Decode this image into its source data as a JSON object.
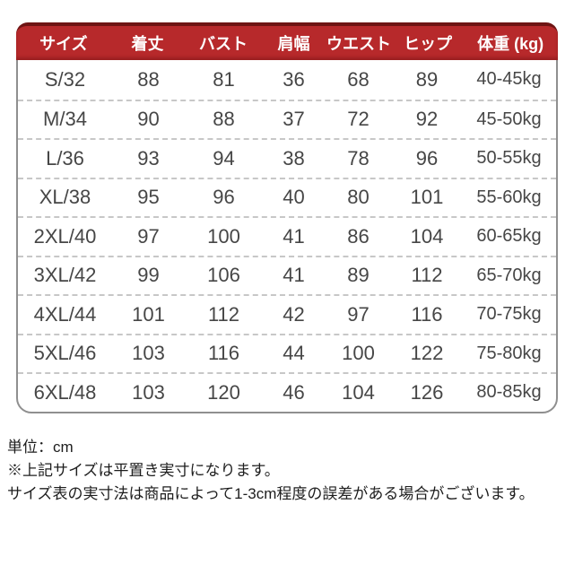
{
  "size_chart": {
    "header_labels": [
      "サイズ",
      "着丈",
      "バスト",
      "肩幅",
      "ウエスト",
      "ヒップ",
      "体重 (kg)"
    ],
    "rows": [
      {
        "size": "S/32",
        "length": "88",
        "bust": "81",
        "shoulder": "36",
        "waist": "68",
        "hip": "89",
        "weight": "40-45kg"
      },
      {
        "size": "M/34",
        "length": "90",
        "bust": "88",
        "shoulder": "37",
        "waist": "72",
        "hip": "92",
        "weight": "45-50kg"
      },
      {
        "size": "L/36",
        "length": "93",
        "bust": "94",
        "shoulder": "38",
        "waist": "78",
        "hip": "96",
        "weight": "50-55kg"
      },
      {
        "size": "XL/38",
        "length": "95",
        "bust": "96",
        "shoulder": "40",
        "waist": "80",
        "hip": "101",
        "weight": "55-60kg"
      },
      {
        "size": "2XL/40",
        "length": "97",
        "bust": "100",
        "shoulder": "41",
        "waist": "86",
        "hip": "104",
        "weight": "60-65kg"
      },
      {
        "size": "3XL/42",
        "length": "99",
        "bust": "106",
        "shoulder": "41",
        "waist": "89",
        "hip": "112",
        "weight": "65-70kg"
      },
      {
        "size": "4XL/44",
        "length": "101",
        "bust": "112",
        "shoulder": "42",
        "waist": "97",
        "hip": "116",
        "weight": "70-75kg"
      },
      {
        "size": "5XL/46",
        "length": "103",
        "bust": "116",
        "shoulder": "44",
        "waist": "100",
        "hip": "122",
        "weight": "75-80kg"
      },
      {
        "size": "6XL/48",
        "length": "103",
        "bust": "120",
        "shoulder": "46",
        "waist": "104",
        "hip": "126",
        "weight": "80-85kg"
      }
    ],
    "colors": {
      "header_bg": "#b7292b",
      "header_top_edge": "#6e1413",
      "header_text": "#ffffff",
      "body_border": "#8f8f8f",
      "row_divider": "#c7c7c7",
      "cell_text": "#464646",
      "note_text": "#1d1d1d"
    }
  },
  "notes": {
    "unit": "単位：cm",
    "line1": "※上記サイズは平置き実寸になります。",
    "line2": "サイズ表の実寸法は商品によって1-3cm程度の誤差がある場合がございます。"
  }
}
